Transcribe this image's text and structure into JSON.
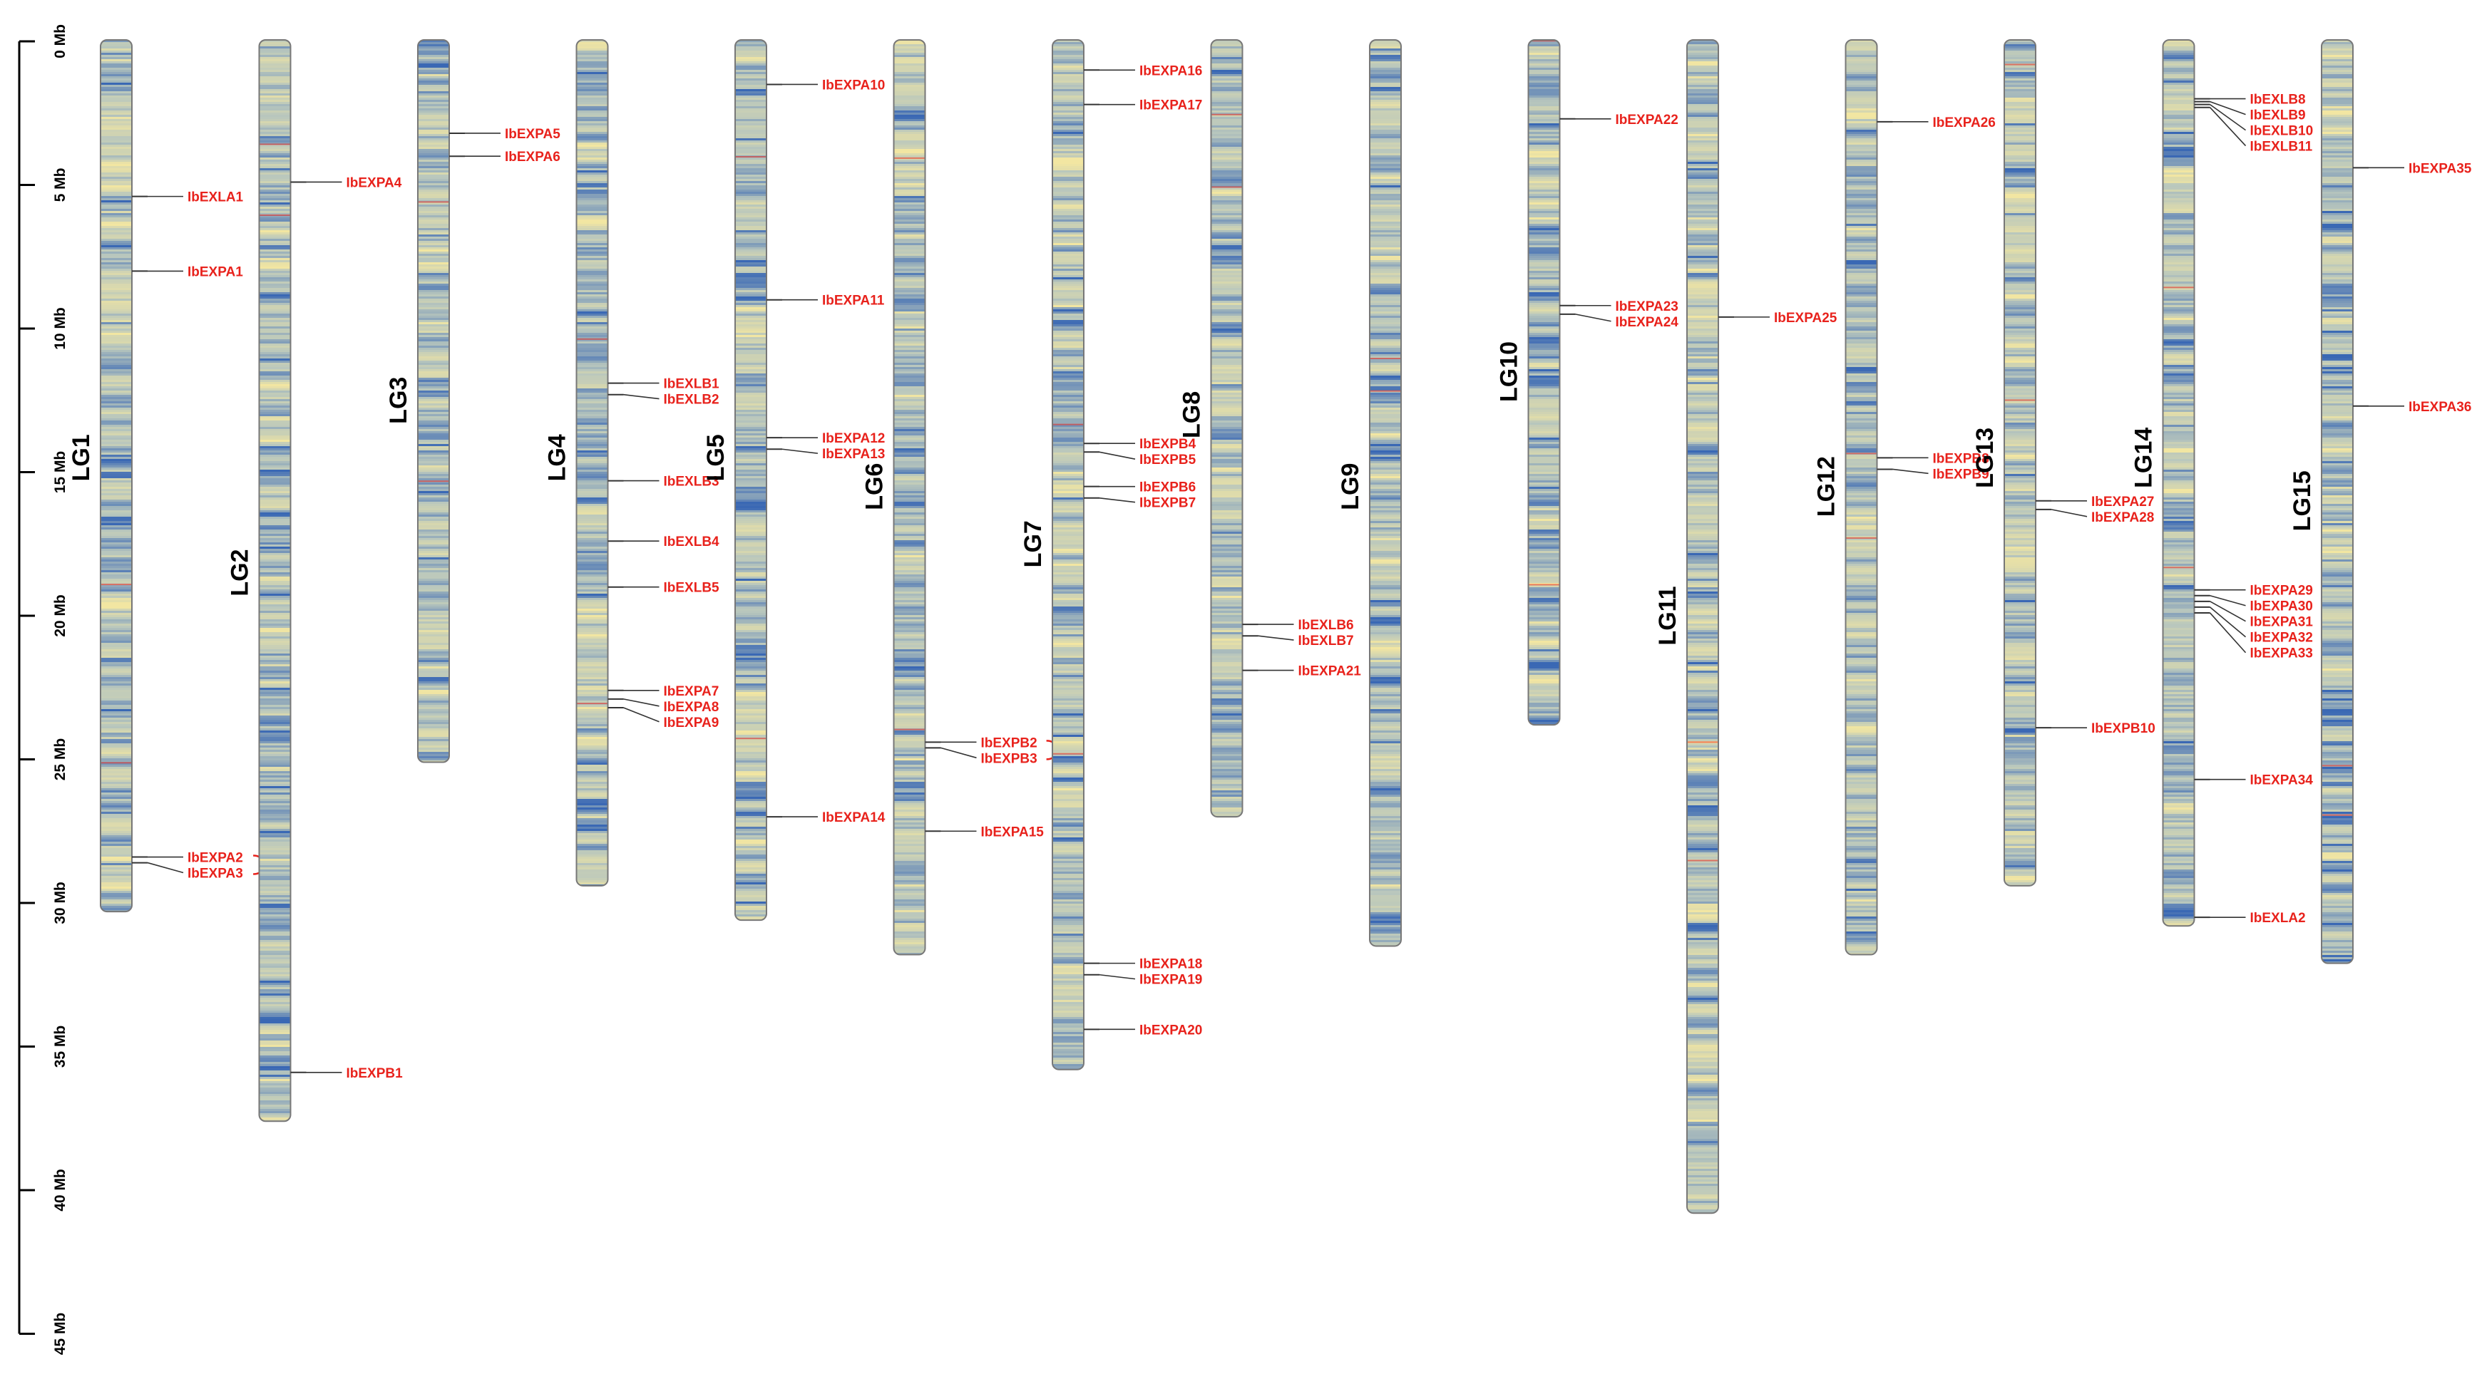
{
  "colors": {
    "gene_label": "#e8221c",
    "leader_line": "#333333",
    "hot_line": "#e8221c",
    "density_low": "#f2e6a2",
    "density_mid": "#b9c7bd",
    "density_high": "#3a68b4",
    "chromosome_outline": "#777777"
  },
  "scale": {
    "unit": "Mb",
    "max": 45,
    "ticks": [
      {
        "value": 0,
        "label": "0 Mb"
      },
      {
        "value": 5,
        "label": "5 Mb"
      },
      {
        "value": 10,
        "label": "10 Mb"
      },
      {
        "value": 15,
        "label": "15 Mb"
      },
      {
        "value": 20,
        "label": "20 Mb"
      },
      {
        "value": 25,
        "label": "25 Mb"
      },
      {
        "value": 30,
        "label": "30 Mb"
      },
      {
        "value": 35,
        "label": "35 Mb"
      },
      {
        "value": 40,
        "label": "40 Mb"
      },
      {
        "value": 45,
        "label": "45 Mb"
      }
    ]
  },
  "chromosomes": [
    {
      "name": "LG1",
      "length": 30.3,
      "label_pos": 14.5,
      "genes": [
        {
          "name": "IbEXLA1",
          "pos": 5.4
        },
        {
          "name": "IbEXPA1",
          "pos": 8.0
        },
        {
          "name": "IbEXPA2",
          "pos": 28.4,
          "tandem": true
        },
        {
          "name": "IbEXPA3",
          "pos": 28.6,
          "tandem": true
        }
      ]
    },
    {
      "name": "LG2",
      "length": 37.6,
      "label_pos": 18.5,
      "genes": [
        {
          "name": "IbEXPA4",
          "pos": 4.9
        },
        {
          "name": "IbEXPB1",
          "pos": 35.9
        }
      ]
    },
    {
      "name": "LG3",
      "length": 25.1,
      "label_pos": 12.5,
      "genes": [
        {
          "name": "IbEXPA5",
          "pos": 3.2
        },
        {
          "name": "IbEXPA6",
          "pos": 4.0
        }
      ]
    },
    {
      "name": "LG4",
      "length": 29.4,
      "label_pos": 14.5,
      "genes": [
        {
          "name": "IbEXLB1",
          "pos": 11.9
        },
        {
          "name": "IbEXLB2",
          "pos": 12.3
        },
        {
          "name": "IbEXLB3",
          "pos": 15.3
        },
        {
          "name": "IbEXLB4",
          "pos": 17.4
        },
        {
          "name": "IbEXLB5",
          "pos": 19.0
        },
        {
          "name": "IbEXPA7",
          "pos": 22.6
        },
        {
          "name": "IbEXPA8",
          "pos": 22.9
        },
        {
          "name": "IbEXPA9",
          "pos": 23.2
        }
      ]
    },
    {
      "name": "LG5",
      "length": 30.6,
      "label_pos": 14.5,
      "genes": [
        {
          "name": "IbEXPA10",
          "pos": 1.5
        },
        {
          "name": "IbEXPA11",
          "pos": 9.0
        },
        {
          "name": "IbEXPA12",
          "pos": 13.8
        },
        {
          "name": "IbEXPA13",
          "pos": 14.2
        },
        {
          "name": "IbEXPA14",
          "pos": 27.0
        }
      ]
    },
    {
      "name": "LG6",
      "length": 31.8,
      "label_pos": 15.5,
      "genes": [
        {
          "name": "IbEXPB2",
          "pos": 24.4,
          "tandem": true
        },
        {
          "name": "IbEXPB3",
          "pos": 24.6,
          "tandem": true
        },
        {
          "name": "IbEXPA15",
          "pos": 27.5
        }
      ]
    },
    {
      "name": "LG7",
      "length": 35.8,
      "label_pos": 17.5,
      "genes": [
        {
          "name": "IbEXPA16",
          "pos": 1.0
        },
        {
          "name": "IbEXPA17",
          "pos": 2.2
        },
        {
          "name": "IbEXPB4",
          "pos": 14.0
        },
        {
          "name": "IbEXPB5",
          "pos": 14.3
        },
        {
          "name": "IbEXPB6",
          "pos": 15.5
        },
        {
          "name": "IbEXPB7",
          "pos": 15.9
        },
        {
          "name": "IbEXPA18",
          "pos": 32.1
        },
        {
          "name": "IbEXPA19",
          "pos": 32.5
        },
        {
          "name": "IbEXPA20",
          "pos": 34.4
        }
      ]
    },
    {
      "name": "LG8",
      "length": 27.0,
      "label_pos": 13.0,
      "genes": [
        {
          "name": "IbEXLB6",
          "pos": 20.3
        },
        {
          "name": "IbEXLB7",
          "pos": 20.7
        },
        {
          "name": "IbEXPA21",
          "pos": 21.9
        }
      ]
    },
    {
      "name": "LG9",
      "length": 31.5,
      "label_pos": 15.5,
      "genes": []
    },
    {
      "name": "LG10",
      "length": 23.8,
      "label_pos": 11.5,
      "genes": [
        {
          "name": "IbEXPA22",
          "pos": 2.7
        },
        {
          "name": "IbEXPA23",
          "pos": 9.2
        },
        {
          "name": "IbEXPA24",
          "pos": 9.5
        }
      ]
    },
    {
      "name": "LG11",
      "length": 40.8,
      "label_pos": 20.0,
      "genes": [
        {
          "name": "IbEXPA25",
          "pos": 9.6
        }
      ]
    },
    {
      "name": "LG12",
      "length": 31.8,
      "label_pos": 15.5,
      "genes": [
        {
          "name": "IbEXPA26",
          "pos": 2.8
        },
        {
          "name": "IbEXPB8",
          "pos": 14.5
        },
        {
          "name": "IbEXPB9",
          "pos": 14.9
        }
      ]
    },
    {
      "name": "LG13",
      "length": 29.4,
      "label_pos": 14.5,
      "genes": [
        {
          "name": "IbEXPA27",
          "pos": 16.0
        },
        {
          "name": "IbEXPA28",
          "pos": 16.3
        },
        {
          "name": "IbEXPB10",
          "pos": 23.9
        }
      ]
    },
    {
      "name": "LG14",
      "length": 30.8,
      "label_pos": 14.5,
      "genes": [
        {
          "name": "IbEXLB8",
          "pos": 2.0,
          "tandem": true
        },
        {
          "name": "IbEXLB9",
          "pos": 2.1,
          "tandem": true
        },
        {
          "name": "IbEXLB10",
          "pos": 2.2,
          "tandem": true
        },
        {
          "name": "IbEXLB11",
          "pos": 2.3
        },
        {
          "name": "IbEXPA29",
          "pos": 19.1,
          "tandem": true
        },
        {
          "name": "IbEXPA30",
          "pos": 19.3,
          "tandem": true
        },
        {
          "name": "IbEXPA31",
          "pos": 19.5,
          "tandem": true
        },
        {
          "name": "IbEXPA32",
          "pos": 19.7,
          "tandem": true
        },
        {
          "name": "IbEXPA33",
          "pos": 19.9,
          "tandem": true
        },
        {
          "name": "IbEXPA34",
          "pos": 25.7
        },
        {
          "name": "IbEXLA2",
          "pos": 30.5
        }
      ]
    },
    {
      "name": "LG15",
      "length": 32.1,
      "label_pos": 16.0,
      "genes": [
        {
          "name": "IbEXPA35",
          "pos": 4.4
        },
        {
          "name": "IbEXPA36",
          "pos": 12.7
        }
      ]
    }
  ]
}
